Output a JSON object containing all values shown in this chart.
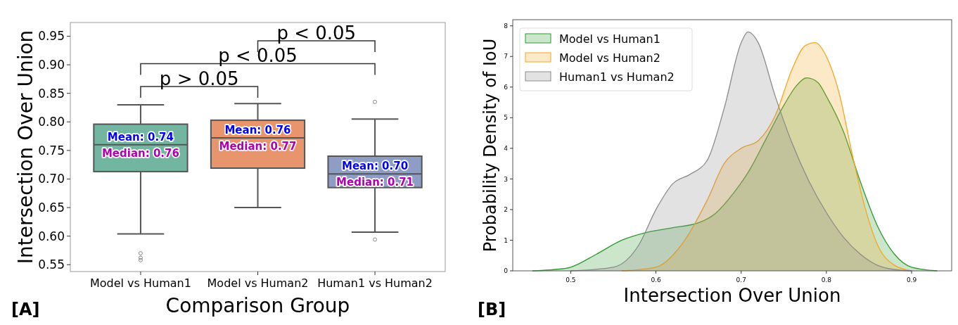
{
  "chart_data": [
    {
      "type": "box",
      "xlabel": "Comparison Group",
      "ylabel": "Intersection Over Union",
      "categories": [
        "Model vs Human1",
        "Model vs Human2",
        "Human1 vs Human2"
      ],
      "colors": [
        "#72b6a1",
        "#e8956d",
        "#8d9dc4"
      ],
      "ylim": [
        0.538,
        0.974
      ],
      "yticks": [
        {
          "value": 0.55,
          "label": "0.55"
        },
        {
          "value": 0.6,
          "label": "0.60"
        },
        {
          "value": 0.65,
          "label": "0.65"
        },
        {
          "value": 0.7,
          "label": "0.70"
        },
        {
          "value": 0.75,
          "label": "0.75"
        },
        {
          "value": 0.8,
          "label": "0.80"
        },
        {
          "value": 0.85,
          "label": "0.85"
        },
        {
          "value": 0.9,
          "label": "0.90"
        },
        {
          "value": 0.95,
          "label": "0.95"
        }
      ],
      "boxes": [
        {
          "low": 0.604,
          "q1": 0.713,
          "median": 0.76,
          "q3": 0.796,
          "high": 0.83,
          "outliers": [
            0.57,
            0.562,
            0.558
          ]
        },
        {
          "low": 0.65,
          "q1": 0.719,
          "median": 0.772,
          "q3": 0.803,
          "high": 0.832
        },
        {
          "low": 0.607,
          "q1": 0.685,
          "median": 0.709,
          "q3": 0.74,
          "high": 0.805,
          "outliers": [
            0.835,
            0.594
          ]
        }
      ],
      "annotations": [
        "Mean: 0.74",
        "Median: 0.76",
        "Mean: 0.76",
        "Median: 0.77",
        "Mean: 0.70",
        "Median: 0.71",
        "p > 0.05",
        "p < 0.05",
        "p < 0.05",
        "[A]"
      ]
    },
    {
      "type": "area",
      "xlabel": "Intersection Over Union",
      "ylabel": "Probability Density of IoU",
      "xlim": [
        0.432,
        0.947
      ],
      "ylim": [
        0,
        8.2
      ],
      "xticks": [
        0.5,
        0.6,
        0.7,
        0.8,
        0.9
      ],
      "yticks": [
        0,
        1,
        2,
        3,
        4,
        5,
        6,
        7,
        8
      ],
      "legend": "top left",
      "annotations": [
        "[B]"
      ],
      "series": [
        {
          "name": "Model vs Human1",
          "color": "#2e9a2e",
          "x": [
            0.455,
            0.48,
            0.5,
            0.53,
            0.56,
            0.59,
            0.62,
            0.65,
            0.67,
            0.69,
            0.71,
            0.73,
            0.75,
            0.765,
            0.777,
            0.79,
            0.8,
            0.82,
            0.84,
            0.86,
            0.88,
            0.9,
            0.93
          ],
          "values": [
            0,
            0.04,
            0.12,
            0.54,
            1.0,
            1.26,
            1.41,
            1.57,
            1.88,
            2.5,
            3.3,
            4.35,
            5.4,
            6.05,
            6.3,
            6.15,
            5.7,
            4.55,
            2.9,
            1.46,
            0.54,
            0.12,
            0
          ]
        },
        {
          "name": "Model vs Human2",
          "color": "#f5a623",
          "x": [
            0.56,
            0.6,
            0.63,
            0.66,
            0.68,
            0.7,
            0.72,
            0.74,
            0.76,
            0.775,
            0.787,
            0.8,
            0.815,
            0.83,
            0.845,
            0.86,
            0.88,
            0.9
          ],
          "values": [
            0,
            0.12,
            0.85,
            2.3,
            3.5,
            4.0,
            4.25,
            5.07,
            6.6,
            7.35,
            7.45,
            7.0,
            5.8,
            3.85,
            2.1,
            0.85,
            0.18,
            0
          ]
        },
        {
          "name": "Human1 vs Human2",
          "color": "#8c8c8c",
          "x": [
            0.5,
            0.55,
            0.58,
            0.6,
            0.62,
            0.64,
            0.66,
            0.68,
            0.7,
            0.708,
            0.72,
            0.74,
            0.76,
            0.78,
            0.8,
            0.82,
            0.84,
            0.86,
            0.88,
            0.9
          ],
          "values": [
            0,
            0.12,
            0.85,
            2.0,
            2.85,
            3.15,
            3.6,
            5.3,
            7.45,
            7.8,
            7.45,
            5.7,
            4.15,
            2.9,
            1.9,
            1.1,
            0.54,
            0.18,
            0.04,
            0
          ]
        }
      ]
    }
  ]
}
